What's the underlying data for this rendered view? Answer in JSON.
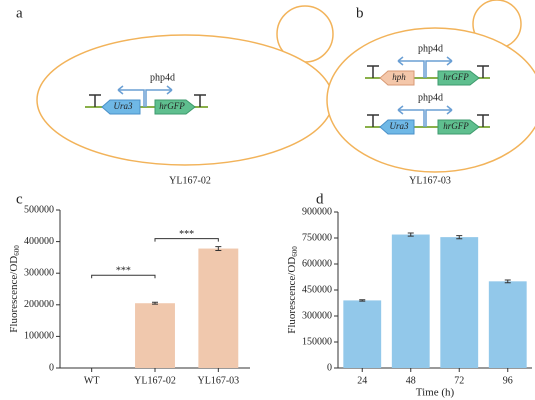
{
  "panels": {
    "a": {
      "label": "a",
      "promoter": "php4d",
      "genes": [
        "Ura3",
        "hrGFP"
      ],
      "caption": "YL167-02"
    },
    "b": {
      "label": "b",
      "top": {
        "promoter": "php4d",
        "genes": [
          "hph",
          "hrGFP"
        ]
      },
      "bottom": {
        "promoter": "php4d",
        "genes": [
          "Ura3",
          "hrGFP"
        ]
      },
      "caption": "YL167-03"
    },
    "c": {
      "label": "c"
    },
    "d": {
      "label": "d"
    }
  },
  "chart_data": [
    {
      "type": "bar",
      "ylabel": {
        "text": "Fluorescence/OD",
        "subscript": "600"
      },
      "categories": [
        "WT",
        "YL167-02",
        "YL167-03"
      ],
      "values": [
        0,
        205000,
        378000
      ],
      "errors": [
        0,
        3000,
        6000
      ],
      "color": "#f0c8ad",
      "ylim": [
        0,
        500000
      ],
      "yticks": [
        0,
        100000,
        200000,
        300000,
        400000,
        500000
      ],
      "significance": [
        {
          "from": 0,
          "to": 1,
          "label": "***"
        },
        {
          "from": 1,
          "to": 2,
          "label": "***"
        }
      ]
    },
    {
      "type": "bar",
      "ylabel": {
        "text": "Fluorescence/OD",
        "subscript": "600"
      },
      "xlabel": "Time (h)",
      "categories": [
        "24",
        "48",
        "72",
        "96"
      ],
      "values": [
        390000,
        770000,
        755000,
        500000
      ],
      "errors": [
        4000,
        9000,
        9000,
        8000
      ],
      "color": "#92c8ea",
      "ylim": [
        0,
        900000
      ],
      "yticks": [
        0,
        150000,
        300000,
        450000,
        600000,
        750000,
        900000
      ]
    }
  ]
}
